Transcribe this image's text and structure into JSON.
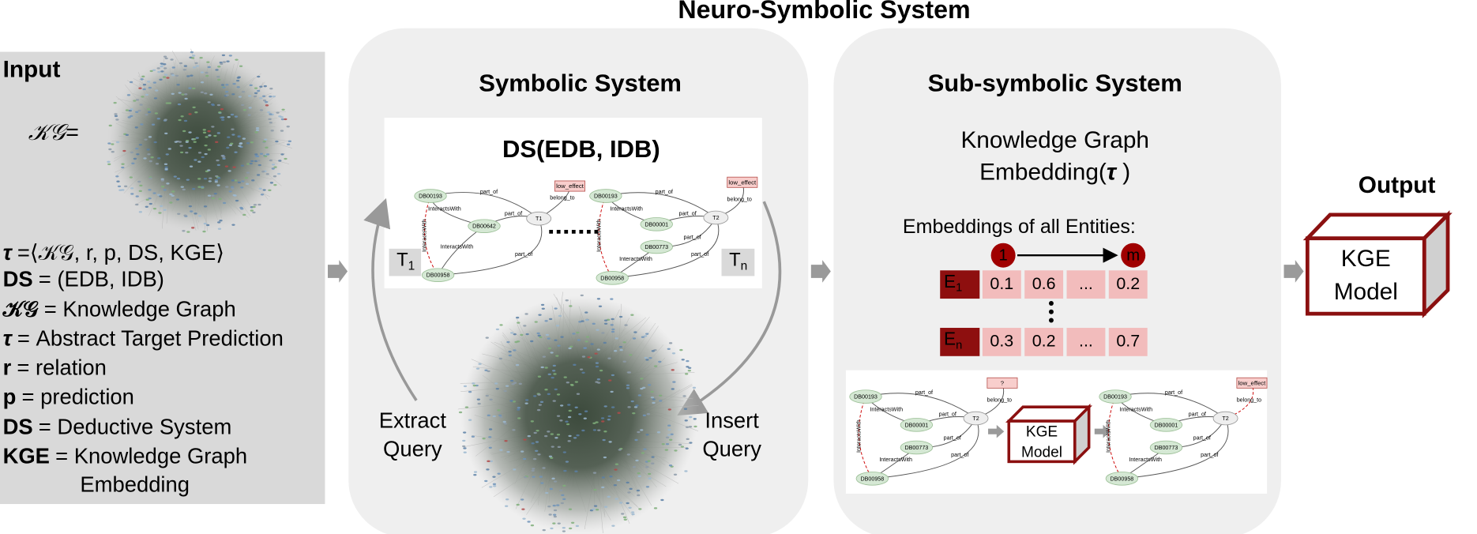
{
  "title": "Neuro-Symbolic System",
  "input": {
    "heading": "Input",
    "kg_label": "𝒦𝒢=",
    "definitions": [
      {
        "term": "τ",
        "text": "=⟨𝒦𝒢, r, p, DS, KGE⟩"
      },
      {
        "term": "DS",
        "text": "= (EDB, IDB)"
      },
      {
        "term": "𝒦𝒢",
        "text": "= Knowledge Graph"
      },
      {
        "term": "τ",
        "text": "= Abstract Target Prediction"
      },
      {
        "term": "r",
        "text": "= relation"
      },
      {
        "term": "p",
        "text": "= prediction"
      },
      {
        "term": "DS",
        "text": "= Deductive System"
      },
      {
        "term": "KGE",
        "text": "= Knowledge Graph",
        "continuation": "Embedding"
      }
    ]
  },
  "symbolic": {
    "heading": "Symbolic System",
    "ds_title": "DS(EDB, IDB)",
    "task_first": {
      "base": "T",
      "sub": "1"
    },
    "task_last": {
      "base": "T",
      "sub": "n"
    },
    "graphs": [
      {
        "nodes": [
          "DB00193",
          "DB00642",
          "T1",
          "DB00958"
        ],
        "target": "low_effect",
        "edges": [
          "part_of",
          "InteractsWith",
          "part_of",
          "InteractsWith",
          "InteractsWith",
          "part_of",
          "belong_to"
        ]
      },
      {
        "nodes": [
          "DB00193",
          "DB00001",
          "T2",
          "DB00773",
          "DB00958"
        ],
        "target": "low_effect",
        "edges": [
          "part_of",
          "InteractsWith",
          "part_of",
          "InteractsWith",
          "InteractsWith",
          "part_of",
          "part_of",
          "belong_to"
        ]
      }
    ],
    "extract": [
      "Extract",
      "Query"
    ],
    "insert": [
      "Insert",
      "Query"
    ]
  },
  "subsymbolic": {
    "heading": "Sub-symbolic System",
    "kge_title": {
      "line1": "Knowledge Graph",
      "line2": "Embedding(",
      "symbol": "τ",
      "close": " )"
    },
    "entities_label": "Embeddings of all Entities:",
    "index_start": "1",
    "index_end": "m",
    "rows": [
      {
        "entity": {
          "base": "E",
          "sub": "1"
        },
        "values": [
          0.1,
          0.6,
          "...",
          0.2
        ]
      },
      {
        "entity": {
          "base": "E",
          "sub": "n"
        },
        "values": [
          0.3,
          0.2,
          "...",
          0.7
        ]
      }
    ],
    "graphs": [
      {
        "nodes": [
          "DB00193",
          "DB00001",
          "T2",
          "DB00773",
          "DB00958"
        ],
        "target": "?",
        "edges": [
          "part_of",
          "InteractsWith",
          "part_of",
          "InteractsWith",
          "InteractsWith",
          "part_of",
          "part_of",
          "belong_to"
        ]
      },
      {
        "nodes": [
          "DB00193",
          "DB00001",
          "T2",
          "DB00773",
          "DB00958"
        ],
        "target": "low_effect",
        "edges": [
          "part_of",
          "InteractsWith",
          "part_of",
          "InteractsWith",
          "InteractsWith",
          "part_of",
          "part_of",
          "belong_to"
        ]
      }
    ],
    "model": [
      "KGE",
      "Model"
    ]
  },
  "output": {
    "heading": "Output",
    "model": [
      "KGE",
      "Model"
    ]
  }
}
